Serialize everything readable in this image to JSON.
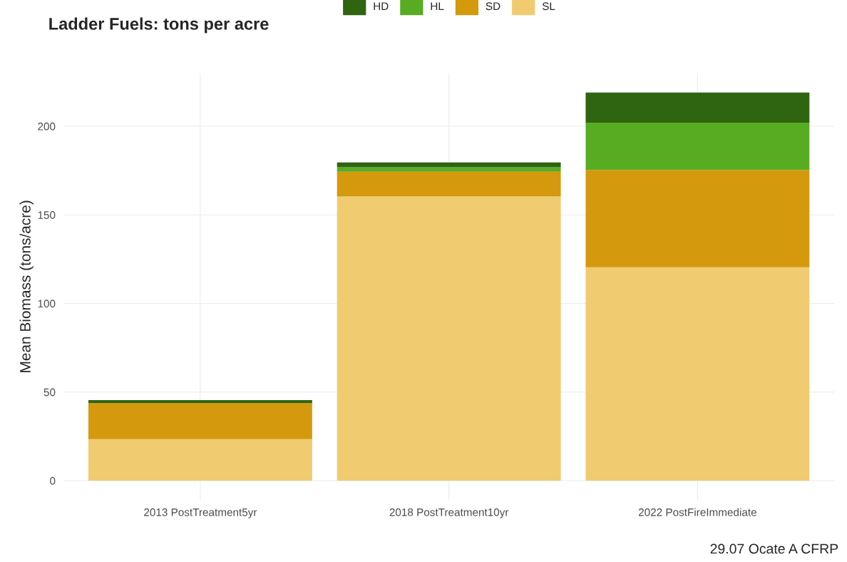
{
  "chart_data": {
    "type": "bar",
    "title": "Ladder Fuels: tons per acre",
    "ylabel": "Mean Biomass (tons/acre)",
    "categories": [
      "2013 PostTreatment5yr",
      "2018 PostTreatment10yr",
      "2022 PostFireImmediate"
    ],
    "stacked": true,
    "series": [
      {
        "name": "SL",
        "color": "#f0cb70",
        "values": [
          23.4,
          160.4,
          120.4
        ]
      },
      {
        "name": "SD",
        "color": "#d4990c",
        "values": [
          20.4,
          13.9,
          54.9
        ]
      },
      {
        "name": "HL",
        "color": "#58ac22",
        "values": [
          0,
          2.6,
          26.7
        ]
      },
      {
        "name": "HD",
        "color": "#2f6410",
        "values": [
          1.7,
          2.7,
          17.0
        ]
      }
    ],
    "ylim": [
      -11,
      230
    ],
    "yticks": [
      0,
      50,
      100,
      150,
      200
    ],
    "grid": true,
    "legend": "top",
    "annotations": [
      "29.07 Ocate A CFRP"
    ]
  }
}
